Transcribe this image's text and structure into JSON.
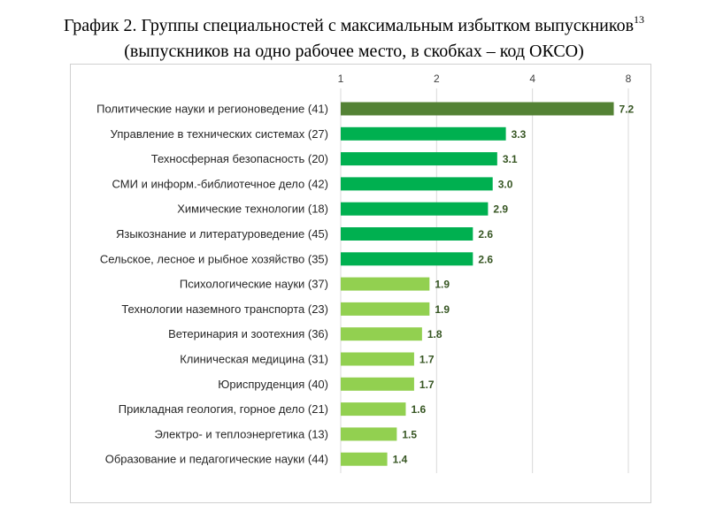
{
  "title": {
    "line1": "График 2. Группы специальностей с максимальным избытком выпускников",
    "footnote": "13",
    "line2": "(выпускников на одно рабочее место, в скобках – код ОКСО)"
  },
  "chart_data": {
    "type": "bar",
    "orientation": "horizontal",
    "x_scale": "log2",
    "xlim": [
      1,
      8
    ],
    "ticks": [
      "1",
      "2",
      "4",
      "8"
    ],
    "tick_values": [
      1,
      2,
      4,
      8
    ],
    "grid": true,
    "categories": [
      "Политические науки и регионоведение (41)",
      "Управление в технических системах (27)",
      "Техносферная безопасность (20)",
      "СМИ и информ.-библиотечное дело (42)",
      "Химические технологии (18)",
      "Языкознание и литературоведение (45)",
      "Сельское, лесное и рыбное хозяйство (35)",
      "Психологические науки (37)",
      "Технологии наземного транспорта (23)",
      "Ветеринария и зоотехния (36)",
      "Клиническая медицина (31)",
      "Юриспруденция (40)",
      "Прикладная геология, горное дело (21)",
      "Электро- и теплоэнергетика (13)",
      "Образование и педагогические науки (44)"
    ],
    "values": [
      7.2,
      3.3,
      3.1,
      3.0,
      2.9,
      2.6,
      2.6,
      1.9,
      1.9,
      1.8,
      1.7,
      1.7,
      1.6,
      1.5,
      1.4
    ],
    "value_labels": [
      "7.2",
      "3.3",
      "3.1",
      "3.0",
      "2.9",
      "2.6",
      "2.6",
      "1.9",
      "1.9",
      "1.8",
      "1.7",
      "1.7",
      "1.6",
      "1.5",
      "1.4"
    ],
    "bar_colors": [
      "#548235",
      "#00b050",
      "#00b050",
      "#00b050",
      "#00b050",
      "#00b050",
      "#00b050",
      "#92d050",
      "#92d050",
      "#92d050",
      "#92d050",
      "#92d050",
      "#92d050",
      "#92d050",
      "#92d050"
    ],
    "label_color": "#375623"
  }
}
